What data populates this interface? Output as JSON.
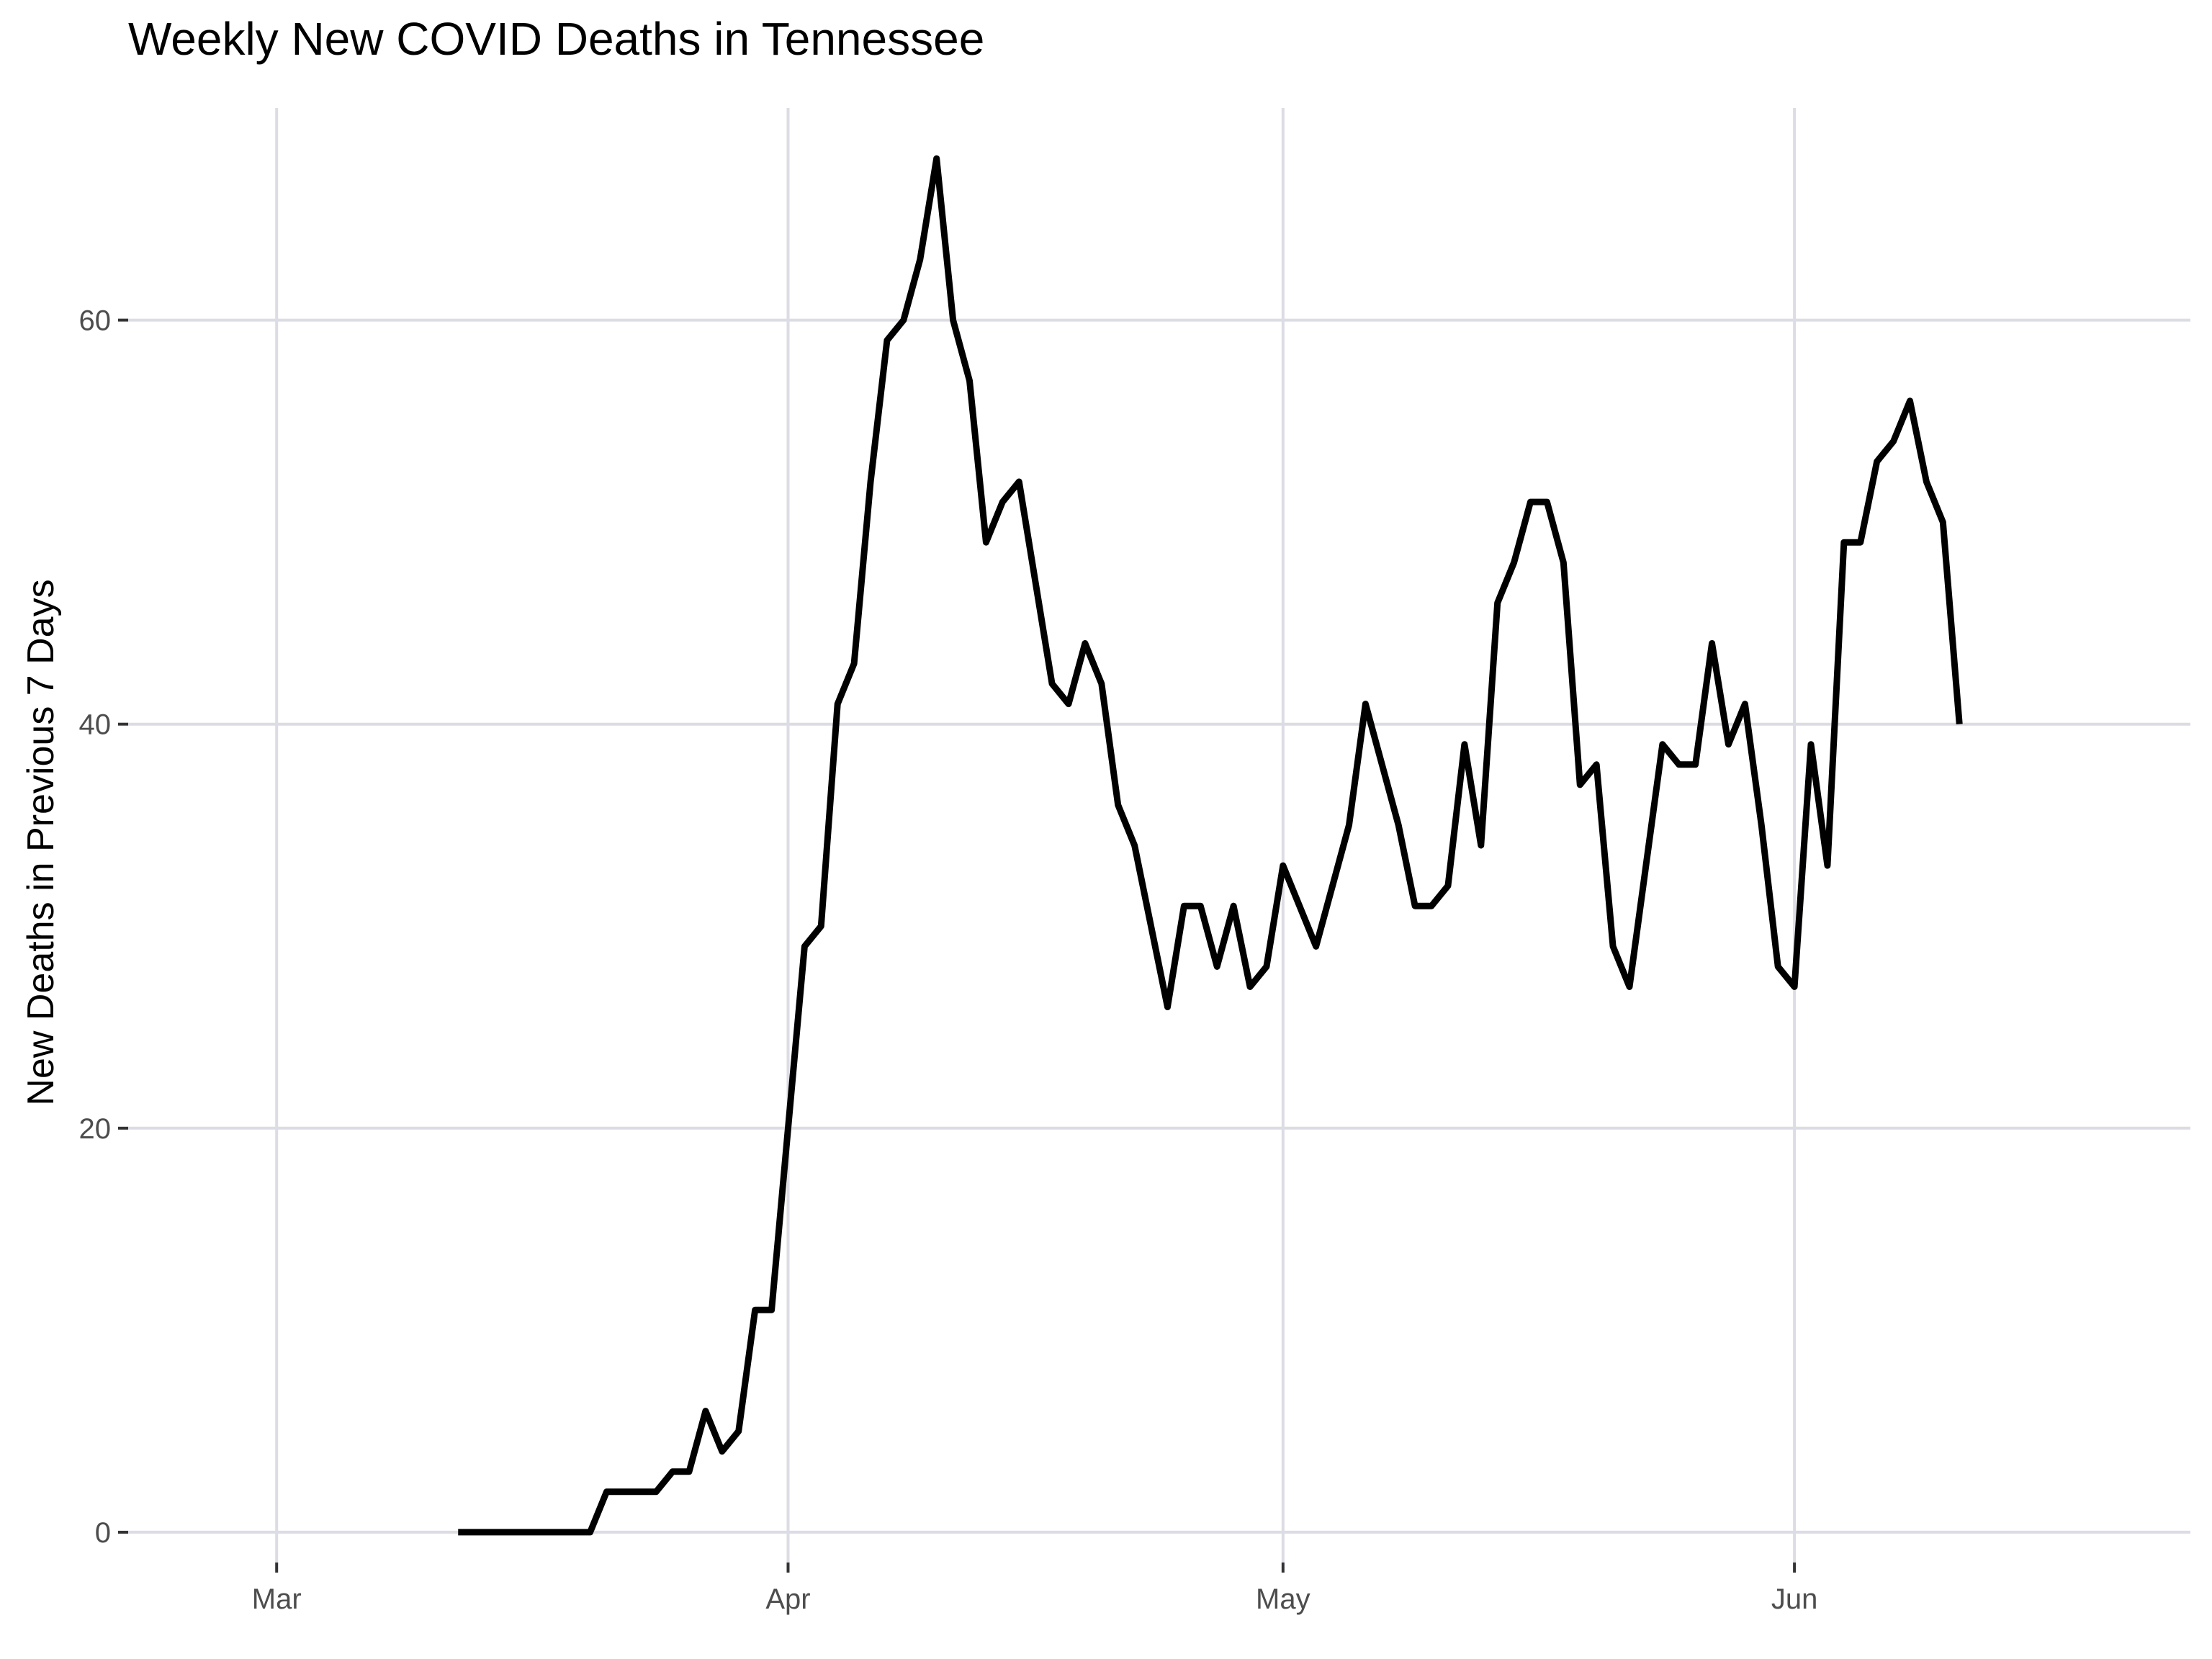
{
  "chart_data": {
    "type": "line",
    "title": "Weekly New COVID Deaths in Tennessee",
    "xlabel": "",
    "ylabel": "New Deaths in Previous 7 Days",
    "x_axis": {
      "type": "date",
      "range": [
        "2020-02-21",
        "2020-06-25"
      ],
      "ticks": [
        {
          "date": "2020-03-01",
          "label": "Mar"
        },
        {
          "date": "2020-04-01",
          "label": "Apr"
        },
        {
          "date": "2020-05-01",
          "label": "May"
        },
        {
          "date": "2020-06-01",
          "label": "Jun"
        }
      ]
    },
    "y_axis": {
      "range": [
        -1.5,
        70.5
      ],
      "ticks": [
        {
          "value": 0,
          "label": "0"
        },
        {
          "value": 20,
          "label": "20"
        },
        {
          "value": 40,
          "label": "40"
        },
        {
          "value": 60,
          "label": "60"
        }
      ]
    },
    "grid": true,
    "legend": "none",
    "colors": {
      "line": "#000000",
      "grid": "#dcdce4",
      "tick_label": "#4d4d4d"
    },
    "series": [
      {
        "x": [
          "2020-03-12",
          "2020-03-13",
          "2020-03-14",
          "2020-03-15",
          "2020-03-16",
          "2020-03-17",
          "2020-03-18",
          "2020-03-19",
          "2020-03-20",
          "2020-03-21",
          "2020-03-22",
          "2020-03-23",
          "2020-03-24",
          "2020-03-25",
          "2020-03-26",
          "2020-03-27",
          "2020-03-28",
          "2020-03-29",
          "2020-03-30",
          "2020-03-31",
          "2020-04-01",
          "2020-04-02",
          "2020-04-03",
          "2020-04-04",
          "2020-04-05",
          "2020-04-06",
          "2020-04-07",
          "2020-04-08",
          "2020-04-09",
          "2020-04-10",
          "2020-04-11",
          "2020-04-12",
          "2020-04-13",
          "2020-04-14",
          "2020-04-15",
          "2020-04-16",
          "2020-04-17",
          "2020-04-18",
          "2020-04-19",
          "2020-04-20",
          "2020-04-21",
          "2020-04-22",
          "2020-04-23",
          "2020-04-24",
          "2020-04-25",
          "2020-04-26",
          "2020-04-27",
          "2020-04-28",
          "2020-04-29",
          "2020-04-30",
          "2020-05-01",
          "2020-05-02",
          "2020-05-03",
          "2020-05-04",
          "2020-05-05",
          "2020-05-06",
          "2020-05-07",
          "2020-05-08",
          "2020-05-09",
          "2020-05-10",
          "2020-05-11",
          "2020-05-12",
          "2020-05-13",
          "2020-05-14",
          "2020-05-15",
          "2020-05-16",
          "2020-05-17",
          "2020-05-18",
          "2020-05-19",
          "2020-05-20",
          "2020-05-21",
          "2020-05-22",
          "2020-05-23",
          "2020-05-24",
          "2020-05-25",
          "2020-05-26",
          "2020-05-27",
          "2020-05-28",
          "2020-05-29",
          "2020-05-30",
          "2020-05-31",
          "2020-06-01",
          "2020-06-02",
          "2020-06-03",
          "2020-06-04",
          "2020-06-05",
          "2020-06-06",
          "2020-06-07",
          "2020-06-08",
          "2020-06-09",
          "2020-06-10",
          "2020-06-11"
        ],
        "values": [
          0,
          0,
          0,
          0,
          0,
          0,
          0,
          0,
          0,
          2,
          2,
          2,
          2,
          3,
          3,
          6,
          4,
          5,
          11,
          11,
          20,
          29,
          30,
          41,
          43,
          52,
          59,
          60,
          63,
          68,
          60,
          57,
          49,
          51,
          52,
          47,
          42,
          41,
          44,
          42,
          36,
          34,
          30,
          26,
          31,
          31,
          28,
          31,
          27,
          28,
          33,
          31,
          29,
          32,
          35,
          41,
          38,
          35,
          31,
          31,
          32,
          39,
          34,
          46,
          48,
          51,
          51,
          48,
          37,
          38,
          29,
          27,
          33,
          39,
          38,
          38,
          44,
          39,
          41,
          35,
          28,
          27,
          39,
          33,
          49,
          49,
          53,
          54,
          56,
          52,
          50,
          40
        ]
      }
    ]
  }
}
